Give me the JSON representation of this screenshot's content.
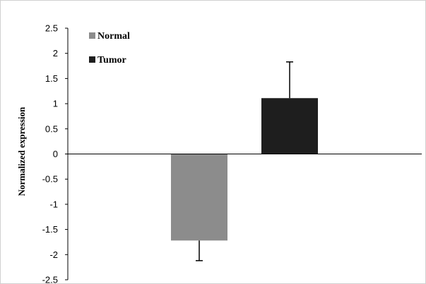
{
  "chart_data": {
    "type": "bar",
    "categories": [
      "Normal",
      "Tumor"
    ],
    "values": [
      -1.72,
      1.11
    ],
    "error_bars": [
      -0.4,
      0.72
    ],
    "colors": [
      "#8c8c8c",
      "#1e1e1e"
    ],
    "ylabel": "Normalized  expression",
    "ylim": [
      -2.5,
      2.5
    ],
    "yticks": [
      "2.5",
      "2",
      "1.5",
      "1",
      "0.5",
      "0",
      "-0.5",
      "-1",
      "-1.5",
      "-2",
      "-2.5"
    ],
    "grid": false,
    "legend": {
      "placement": "top-left",
      "entries": [
        {
          "label": "Normal",
          "color": "#8c8c8c"
        },
        {
          "label": "Tumor",
          "color": "#1e1e1e"
        }
      ]
    }
  }
}
